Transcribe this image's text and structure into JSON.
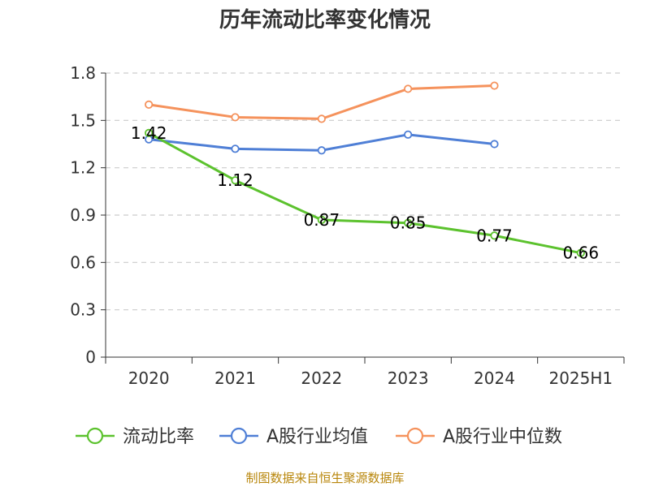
{
  "chart_data": {
    "type": "line",
    "title": "历年流动比率变化情况",
    "categories": [
      "2020",
      "2021",
      "2022",
      "2023",
      "2024",
      "2025H1"
    ],
    "ylim": [
      0,
      1.8
    ],
    "yticks": [
      "0",
      "0.3",
      "0.6",
      "0.9",
      "1.2",
      "1.5",
      "1.8"
    ],
    "ytick_values": [
      0,
      0.3,
      0.6,
      0.9,
      1.2,
      1.5,
      1.8
    ],
    "grid": true,
    "legend_position": "bottom",
    "series": [
      {
        "name": "流动比率",
        "color": "#5cc22e",
        "values": [
          1.42,
          1.12,
          0.87,
          0.85,
          0.77,
          0.66
        ],
        "labels": [
          "1.42",
          "1.12",
          "0.87",
          "0.85",
          "0.77",
          "0.66"
        ]
      },
      {
        "name": "A股行业均值",
        "color": "#4f7fd6",
        "values": [
          1.38,
          1.32,
          1.31,
          1.41,
          1.35,
          null
        ]
      },
      {
        "name": "A股行业中位数",
        "color": "#f5925c",
        "values": [
          1.6,
          1.52,
          1.51,
          1.7,
          1.72,
          null
        ]
      }
    ],
    "source": "制图数据来自恒生聚源数据库"
  }
}
